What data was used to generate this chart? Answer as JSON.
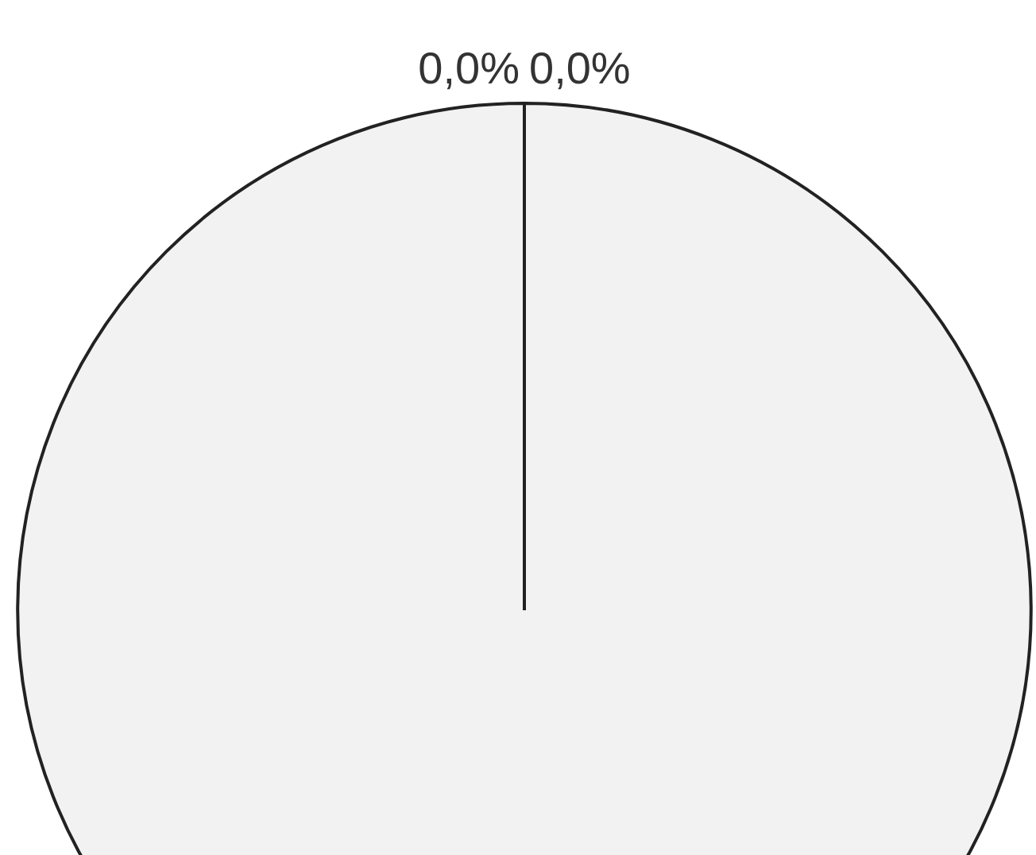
{
  "chart_data": {
    "type": "pie",
    "categories": [
      null,
      null,
      null
    ],
    "values": [
      100,
      0,
      0
    ],
    "colors": [
      "#f2f2f2",
      "#d9d9d9",
      "#bfbfbf"
    ],
    "value_labels": [
      null,
      "0,0%",
      "0,0%"
    ],
    "legend": false
  }
}
